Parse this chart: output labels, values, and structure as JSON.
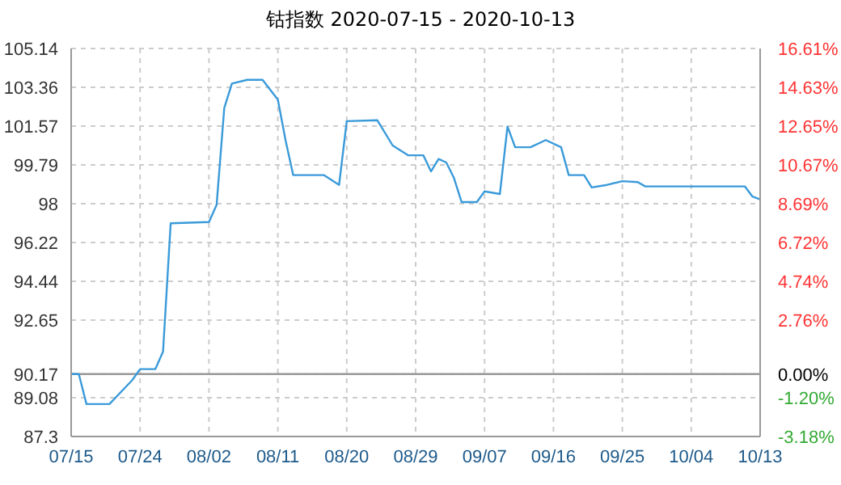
{
  "chart_data": {
    "type": "line",
    "title": "钴指数 2020-07-15 - 2020-10-13",
    "x": [
      "2020-07-15",
      "2020-07-16",
      "2020-07-17",
      "2020-07-20",
      "2020-07-22",
      "2020-07-23",
      "2020-07-24",
      "2020-07-26",
      "2020-07-27",
      "2020-07-28",
      "2020-08-02",
      "2020-08-03",
      "2020-08-04",
      "2020-08-05",
      "2020-08-07",
      "2020-08-09",
      "2020-08-11",
      "2020-08-12",
      "2020-08-13",
      "2020-08-17",
      "2020-08-19",
      "2020-08-20",
      "2020-08-24",
      "2020-08-26",
      "2020-08-28",
      "2020-08-30",
      "2020-08-31",
      "2020-09-01",
      "2020-09-02",
      "2020-09-03",
      "2020-09-04",
      "2020-09-06",
      "2020-09-07",
      "2020-09-09",
      "2020-09-10",
      "2020-09-11",
      "2020-09-13",
      "2020-09-15",
      "2020-09-17",
      "2020-09-18",
      "2020-09-20",
      "2020-09-21",
      "2020-09-23",
      "2020-09-25",
      "2020-09-27",
      "2020-09-28",
      "2020-10-11",
      "2020-10-12",
      "2020-10-13"
    ],
    "series": [
      {
        "color": "#3a9ad9",
        "values": [
          90.17,
          90.17,
          88.79,
          88.79,
          89.53,
          89.9,
          90.4,
          90.4,
          91.2,
          97.1,
          97.16,
          97.95,
          102.4,
          103.53,
          103.7,
          103.7,
          102.79,
          100.93,
          99.32,
          99.32,
          98.87,
          101.8,
          101.84,
          100.68,
          100.23,
          100.23,
          99.49,
          100.06,
          99.9,
          99.19,
          98.08,
          98.08,
          98.57,
          98.45,
          101.55,
          100.6,
          100.6,
          100.93,
          100.6,
          99.32,
          99.32,
          98.75,
          98.87,
          99.04,
          99.0,
          98.8,
          98.8,
          98.33,
          98.2
        ]
      }
    ],
    "ylim": [
      87.3,
      105.14
    ],
    "yticks": [
      87.3,
      89.08,
      90.17,
      92.65,
      94.44,
      96.22,
      98,
      99.79,
      101.57,
      103.36,
      105.14
    ],
    "y2lim": [
      -3.18,
      16.61
    ],
    "y2ticks": [
      {
        "value": -3.18,
        "label": "-3.18%"
      },
      {
        "value": -1.2,
        "label": "-1.20%"
      },
      {
        "value": 0,
        "label": "0.00%"
      },
      {
        "value": 2.76,
        "label": "2.76%"
      },
      {
        "value": 4.74,
        "label": "4.74%"
      },
      {
        "value": 6.72,
        "label": "6.72%"
      },
      {
        "value": 8.69,
        "label": "8.69%"
      },
      {
        "value": 10.67,
        "label": "10.67%"
      },
      {
        "value": 12.65,
        "label": "12.65%"
      },
      {
        "value": 14.63,
        "label": "14.63%"
      },
      {
        "value": 16.61,
        "label": "16.61%"
      }
    ],
    "xlim": [
      "2020-07-15",
      "2020-10-13"
    ],
    "xticks": [
      {
        "value": "2020-07-15",
        "label": "07/15"
      },
      {
        "value": "2020-07-24",
        "label": "07/24"
      },
      {
        "value": "2020-08-02",
        "label": "08/02"
      },
      {
        "value": "2020-08-11",
        "label": "08/11"
      },
      {
        "value": "2020-08-20",
        "label": "08/20"
      },
      {
        "value": "2020-08-29",
        "label": "08/29"
      },
      {
        "value": "2020-09-07",
        "label": "09/07"
      },
      {
        "value": "2020-09-16",
        "label": "09/16"
      },
      {
        "value": "2020-09-25",
        "label": "09/25"
      },
      {
        "value": "2020-10-04",
        "label": "10/04"
      },
      {
        "value": "2020-10-13",
        "label": "10/13"
      }
    ],
    "ref_lines": [
      {
        "axis": "y",
        "value": 90.17,
        "color": "#999999"
      }
    ],
    "grid": true,
    "marker": "none",
    "line_style": "solid"
  }
}
